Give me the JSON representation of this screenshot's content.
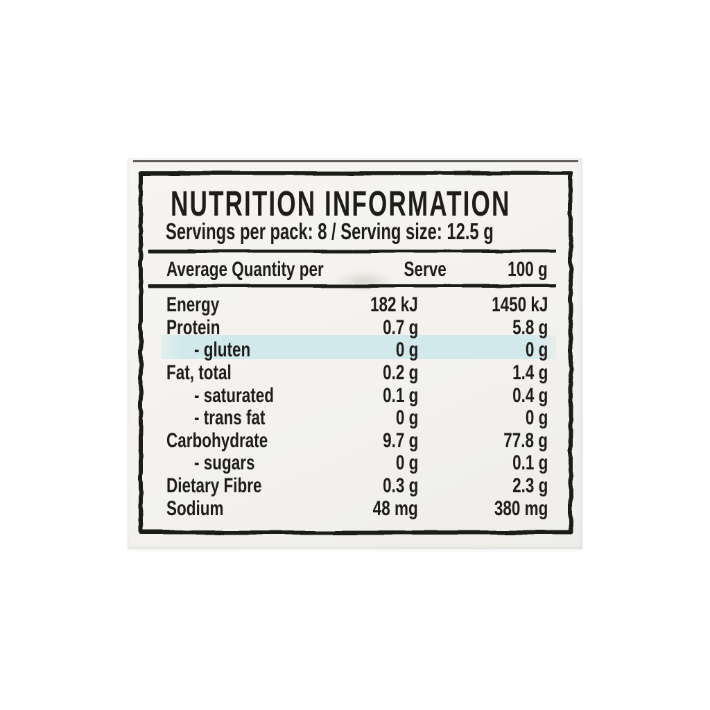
{
  "label": {
    "title": "NUTRITION INFORMATION",
    "servings_line": "Servings per pack: 8 / Serving size: 12.5 g",
    "columns": {
      "quantity": "Average Quantity per",
      "serve": "Serve",
      "per100": "100 g"
    },
    "rows": [
      {
        "name": "Energy",
        "serve": "182 kJ",
        "per100": "1450 kJ"
      },
      {
        "name": "Protein",
        "serve": "0.7 g",
        "per100": "5.8 g"
      },
      {
        "name": "- gluten",
        "serve": "0 g",
        "per100": "0 g"
      },
      {
        "name": "Fat, total",
        "serve": "0.2 g",
        "per100": "1.4 g"
      },
      {
        "name": "- saturated",
        "serve": "0.1 g",
        "per100": "0.4 g"
      },
      {
        "name": "- trans fat",
        "serve": "0 g",
        "per100": "0 g"
      },
      {
        "name": "Carbohydrate",
        "serve": "9.7 g",
        "per100": "77.8 g"
      },
      {
        "name": "- sugars",
        "serve": "0 g",
        "per100": "0.1 g"
      },
      {
        "name": "Dietary Fibre",
        "serve": "0.3 g",
        "per100": "2.3 g"
      },
      {
        "name": "Sodium",
        "serve": "48 mg",
        "per100": "380 mg"
      }
    ],
    "colors": {
      "ink": "#1f1d1a",
      "label_background": "#f3f2ee",
      "highlight_row_background": "#d2e9eb",
      "page_background": "#ffffff"
    }
  }
}
